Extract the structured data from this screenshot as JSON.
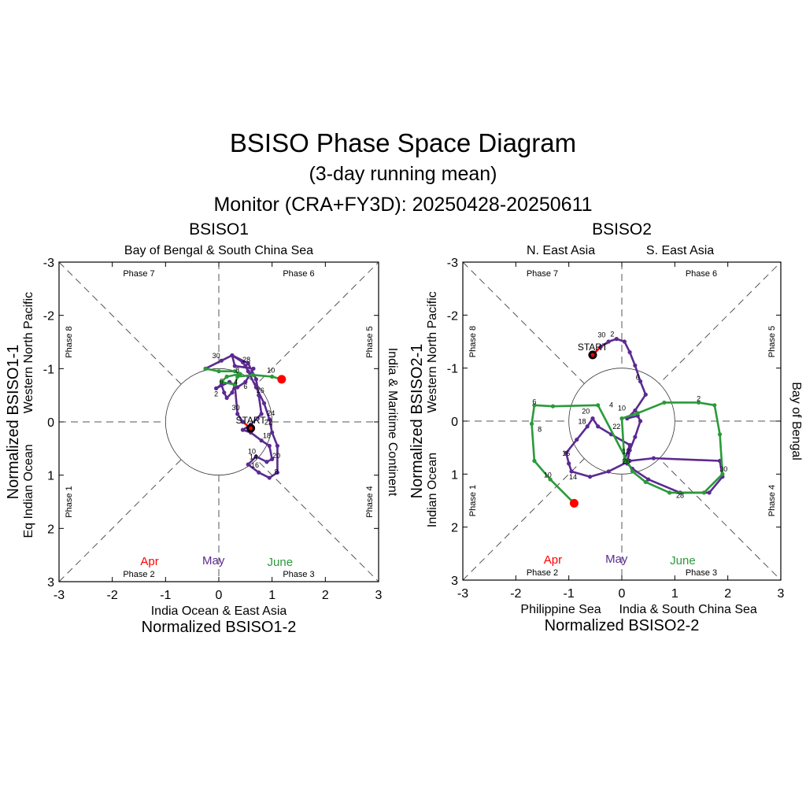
{
  "header": {
    "title": "BSISO Phase Space Diagram",
    "subtitle": "(3-day running mean)",
    "period": "Monitor (CRA+FY3D): 20250428-20250611"
  },
  "months": {
    "apr": "Apr",
    "may": "May",
    "june": "June"
  },
  "colors": {
    "apr": "#ff0000",
    "may": "#5b2a91",
    "june": "#2a9a3a",
    "end": "#ff0000"
  },
  "start_label": "START",
  "chart_data": [
    {
      "type": "line",
      "title": "BSISO1",
      "xlabel": "Normalized BSISO1-2",
      "ylabel": "Normalized BSISO1-1",
      "xlim": [
        -3,
        3
      ],
      "ylim": [
        3,
        -3
      ],
      "x_ticks": [
        "-3",
        "-2",
        "-1",
        "0",
        "1",
        "2",
        "3"
      ],
      "y_ticks": [
        "-3",
        "-2",
        "-1",
        "0",
        "1",
        "2",
        "3"
      ],
      "regions": {
        "top": "Bay of Bengal & South China Sea",
        "bottom": "India Ocean & East Asia",
        "right": "India & Maritime Continent",
        "left_outer": "Eq Indian Ocean",
        "left_inner": "Western North Pacific"
      },
      "phases": {
        "p1": "Phase 1",
        "p2": "Phase 2",
        "p3": "Phase 3",
        "p4": "Phase 4",
        "p5": "Phase 5",
        "p6": "Phase 6",
        "p7": "Phase 7",
        "p8": "Phase 8"
      },
      "series": [
        {
          "name": "Apr",
          "color": "#ff0000",
          "points": [
            [
              0.6,
              0.12
            ],
            [
              0.45,
              0.0
            ]
          ]
        },
        {
          "name": "May",
          "color": "#5b2a91",
          "points": [
            [
              0.45,
              0.0
            ],
            [
              0.35,
              -0.15
            ],
            [
              0.3,
              -0.7
            ],
            [
              0.25,
              -0.55
            ],
            [
              0.15,
              -0.45
            ],
            [
              0.1,
              -0.55
            ],
            [
              0.05,
              -0.7
            ],
            [
              -0.05,
              -0.63
            ],
            [
              0.2,
              -0.75
            ],
            [
              0.35,
              -0.65
            ],
            [
              0.5,
              -0.75
            ],
            [
              0.65,
              -1.0
            ],
            [
              0.3,
              -1.05
            ],
            [
              0.25,
              -1.25
            ],
            [
              0.55,
              -1.1
            ],
            [
              0.7,
              -0.8
            ],
            [
              0.75,
              -0.5
            ],
            [
              0.8,
              -0.15
            ],
            [
              0.6,
              0.05
            ],
            [
              0.45,
              0.15
            ],
            [
              0.6,
              0.2
            ],
            [
              0.8,
              0.35
            ],
            [
              0.95,
              0.45
            ],
            [
              1.0,
              0.7
            ],
            [
              0.9,
              0.75
            ],
            [
              0.7,
              0.65
            ],
            [
              0.55,
              0.8
            ],
            [
              0.75,
              0.95
            ],
            [
              0.95,
              1.05
            ],
            [
              1.1,
              0.95
            ],
            [
              1.1,
              0.45
            ],
            [
              1.0,
              0.2
            ],
            [
              0.95,
              -0.05
            ],
            [
              0.85,
              -0.35
            ],
            [
              0.7,
              -0.65
            ],
            [
              0.55,
              -0.95
            ],
            [
              0.5,
              -1.05
            ],
            [
              0.45,
              -1.12
            ],
            [
              0.25,
              -1.25
            ],
            [
              0.05,
              -1.15
            ],
            [
              -0.25,
              -1.0
            ]
          ]
        },
        {
          "name": "June",
          "color": "#2a9a3a",
          "points": [
            [
              -0.25,
              -1.0
            ],
            [
              0.0,
              -0.95
            ],
            [
              0.3,
              -0.95
            ],
            [
              0.4,
              -0.9
            ],
            [
              0.15,
              -0.85
            ],
            [
              0.05,
              -0.75
            ],
            [
              0.3,
              -0.7
            ],
            [
              0.35,
              -0.85
            ],
            [
              0.65,
              -0.88
            ],
            [
              1.0,
              -0.85
            ],
            [
              1.18,
              -0.8
            ]
          ]
        }
      ],
      "day_labels": [
        {
          "text": "30",
          "x": -0.05,
          "y": -1.2
        },
        {
          "text": "28",
          "x": 0.52,
          "y": -1.12
        },
        {
          "text": "10",
          "x": 0.98,
          "y": -0.92
        },
        {
          "text": "8",
          "x": 0.35,
          "y": -0.92
        },
        {
          "text": "6",
          "x": 0.05,
          "y": -0.72
        },
        {
          "text": "4",
          "x": 0.32,
          "y": -0.7
        },
        {
          "text": "6",
          "x": 0.5,
          "y": -0.62
        },
        {
          "text": "2",
          "x": -0.05,
          "y": -0.48
        },
        {
          "text": "26",
          "x": 0.78,
          "y": -0.55
        },
        {
          "text": "30",
          "x": 0.32,
          "y": -0.22
        },
        {
          "text": "24",
          "x": 0.98,
          "y": -0.12
        },
        {
          "text": "22",
          "x": 0.93,
          "y": 0.05
        },
        {
          "text": "18",
          "x": 0.9,
          "y": 0.3
        },
        {
          "text": "10",
          "x": 0.62,
          "y": 0.6
        },
        {
          "text": "20",
          "x": 1.08,
          "y": 0.68
        },
        {
          "text": "14",
          "x": 0.65,
          "y": 0.7
        },
        {
          "text": "16",
          "x": 0.68,
          "y": 0.86
        },
        {
          "text": "8",
          "x": 1.08,
          "y": 0.98
        }
      ],
      "start": [
        0.6,
        0.12
      ],
      "end": [
        1.18,
        -0.8
      ]
    },
    {
      "type": "line",
      "title": "BSISO2",
      "xlabel": "Normalized BSISO2-2",
      "ylabel": "Normalized BSISO2-1",
      "xlim": [
        -3,
        3
      ],
      "ylim": [
        3,
        -3
      ],
      "x_ticks": [
        "-3",
        "-2",
        "-1",
        "0",
        "1",
        "2",
        "3"
      ],
      "y_ticks": [
        "-3",
        "-2",
        "-1",
        "0",
        "1",
        "2",
        "3"
      ],
      "regions": {
        "top_left": "N. East Asia",
        "top_right": "S. East Asia",
        "bottom_left": "Philippine Sea",
        "bottom_right": "India & South China Sea",
        "right": "Bay of Bengal",
        "left_outer": "Indian Ocean",
        "left_inner": "Western North Pacific"
      },
      "phases": {
        "p1": "Phase 1",
        "p2": "Phase 2",
        "p3": "Phase 3",
        "p4": "Phase 4",
        "p5": "Phase 5",
        "p6": "Phase 6",
        "p7": "Phase 7",
        "p8": "Phase 8"
      },
      "series": [
        {
          "name": "Apr",
          "color": "#ff0000",
          "points": [
            [
              -0.55,
              -1.25
            ],
            [
              -0.4,
              -1.4
            ]
          ]
        },
        {
          "name": "May",
          "color": "#5b2a91",
          "points": [
            [
              -0.4,
              -1.4
            ],
            [
              -0.25,
              -1.5
            ],
            [
              -0.1,
              -1.55
            ],
            [
              0.05,
              -1.5
            ],
            [
              0.15,
              -1.3
            ],
            [
              0.25,
              -1.05
            ],
            [
              0.35,
              -0.75
            ],
            [
              0.45,
              -0.5
            ],
            [
              0.25,
              -0.2
            ],
            [
              0.1,
              -0.05
            ],
            [
              0.3,
              -0.1
            ],
            [
              0.35,
              0.0
            ],
            [
              0.25,
              0.3
            ],
            [
              0.15,
              0.55
            ],
            [
              0.1,
              0.8
            ],
            [
              0.2,
              0.9
            ],
            [
              0.5,
              1.1
            ],
            [
              1.1,
              1.35
            ],
            [
              1.65,
              1.35
            ],
            [
              1.9,
              1.05
            ],
            [
              1.85,
              0.75
            ],
            [
              0.6,
              0.7
            ],
            [
              0.15,
              0.75
            ],
            [
              -0.25,
              0.95
            ],
            [
              -0.6,
              1.05
            ],
            [
              -0.95,
              0.95
            ],
            [
              -1.0,
              0.8
            ],
            [
              -1.05,
              0.6
            ],
            [
              -0.85,
              0.35
            ],
            [
              -0.65,
              0.1
            ],
            [
              -0.55,
              -0.05
            ],
            [
              -0.45,
              0.1
            ],
            [
              -0.2,
              0.25
            ],
            [
              0.15,
              0.45
            ],
            [
              0.05,
              0.75
            ]
          ]
        },
        {
          "name": "June",
          "color": "#2a9a3a",
          "points": [
            [
              0.05,
              0.75
            ],
            [
              0.0,
              -0.05
            ],
            [
              0.3,
              -0.15
            ],
            [
              0.8,
              -0.35
            ],
            [
              1.45,
              -0.35
            ],
            [
              1.75,
              -0.3
            ],
            [
              1.85,
              0.25
            ],
            [
              1.9,
              1.0
            ],
            [
              1.55,
              1.35
            ],
            [
              0.9,
              1.35
            ],
            [
              0.45,
              1.15
            ],
            [
              0.2,
              0.95
            ],
            [
              0.1,
              0.75
            ],
            [
              -0.45,
              -0.3
            ],
            [
              -1.3,
              -0.28
            ],
            [
              -1.65,
              -0.3
            ],
            [
              -1.7,
              0.05
            ],
            [
              -1.65,
              0.75
            ],
            [
              -1.35,
              1.1
            ],
            [
              -0.9,
              1.55
            ]
          ]
        }
      ],
      "day_labels": [
        {
          "text": "30",
          "x": -0.38,
          "y": -1.58
        },
        {
          "text": "2",
          "x": -0.18,
          "y": -1.6
        },
        {
          "text": "6",
          "x": 0.3,
          "y": -0.78
        },
        {
          "text": "2",
          "x": 1.45,
          "y": -0.38
        },
        {
          "text": "4",
          "x": -0.2,
          "y": -0.26
        },
        {
          "text": "10",
          "x": 0.0,
          "y": -0.2
        },
        {
          "text": "6",
          "x": -1.65,
          "y": -0.32
        },
        {
          "text": "20",
          "x": -0.68,
          "y": -0.14
        },
        {
          "text": "18",
          "x": -0.75,
          "y": 0.05
        },
        {
          "text": "22",
          "x": -0.1,
          "y": 0.15
        },
        {
          "text": "8",
          "x": -1.55,
          "y": 0.2
        },
        {
          "text": "12",
          "x": 0.08,
          "y": 0.62
        },
        {
          "text": "16",
          "x": -1.05,
          "y": 0.65
        },
        {
          "text": "26",
          "x": 0.08,
          "y": 0.8
        },
        {
          "text": "14",
          "x": -0.92,
          "y": 1.1
        },
        {
          "text": "10",
          "x": -1.4,
          "y": 1.06
        },
        {
          "text": "30",
          "x": 1.92,
          "y": 0.95
        },
        {
          "text": "28",
          "x": 1.1,
          "y": 1.45
        }
      ],
      "start": [
        -0.55,
        -1.25
      ],
      "end": [
        -0.9,
        1.55
      ]
    }
  ]
}
